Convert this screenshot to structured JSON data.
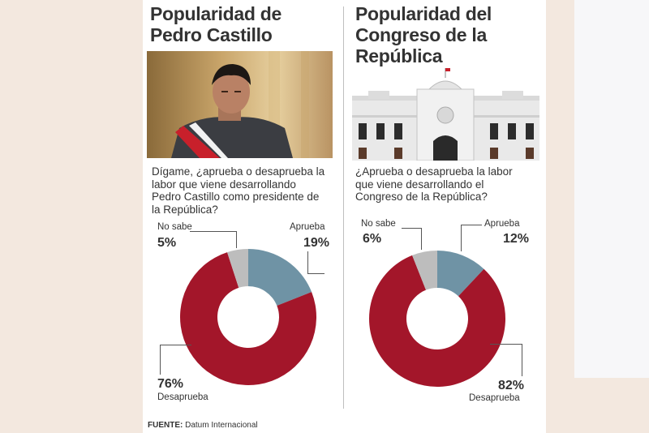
{
  "left": {
    "title_line1": "Popularidad de",
    "title_line2": "Pedro Castillo",
    "question": [
      "Dígame, ¿aprueba o desaprueba la",
      "labor que viene desarrollando",
      "Pedro Castillo como presidente de",
      "la República?"
    ],
    "labels": {
      "no_sabe": "No sabe",
      "no_sabe_pct": "5%",
      "aprueba": "Aprueba",
      "aprueba_pct": "19%",
      "desaprueba": "Desaprueba",
      "desaprueba_pct": "76%"
    }
  },
  "right": {
    "title_line1": "Popularidad del",
    "title_line2": "Congreso de la",
    "title_line3": "República",
    "question": [
      "¿Aprueba o desaprueba la labor",
      "que viene desarrollando el",
      "Congreso de la República?"
    ],
    "labels": {
      "no_sabe": "No sabe",
      "no_sabe_pct": "6%",
      "aprueba": "Aprueba",
      "aprueba_pct": "12%",
      "desaprueba": "Desaprueba",
      "desaprueba_pct": "82%"
    }
  },
  "source_label": "FUENTE:",
  "source_text": " Datum Internacional",
  "colors": {
    "aprueba": "#6f93a5",
    "desaprueba": "#a3162a",
    "no_sabe": "#bdbdbd"
  },
  "chart_data": [
    {
      "type": "pie",
      "title": "Popularidad de Pedro Castillo",
      "categories": [
        "Aprueba",
        "Desaprueba",
        "No sabe"
      ],
      "values": [
        19,
        76,
        5
      ],
      "unit": "%"
    },
    {
      "type": "pie",
      "title": "Popularidad del Congreso de la República",
      "categories": [
        "Aprueba",
        "Desaprueba",
        "No sabe"
      ],
      "values": [
        12,
        82,
        6
      ],
      "unit": "%"
    }
  ]
}
